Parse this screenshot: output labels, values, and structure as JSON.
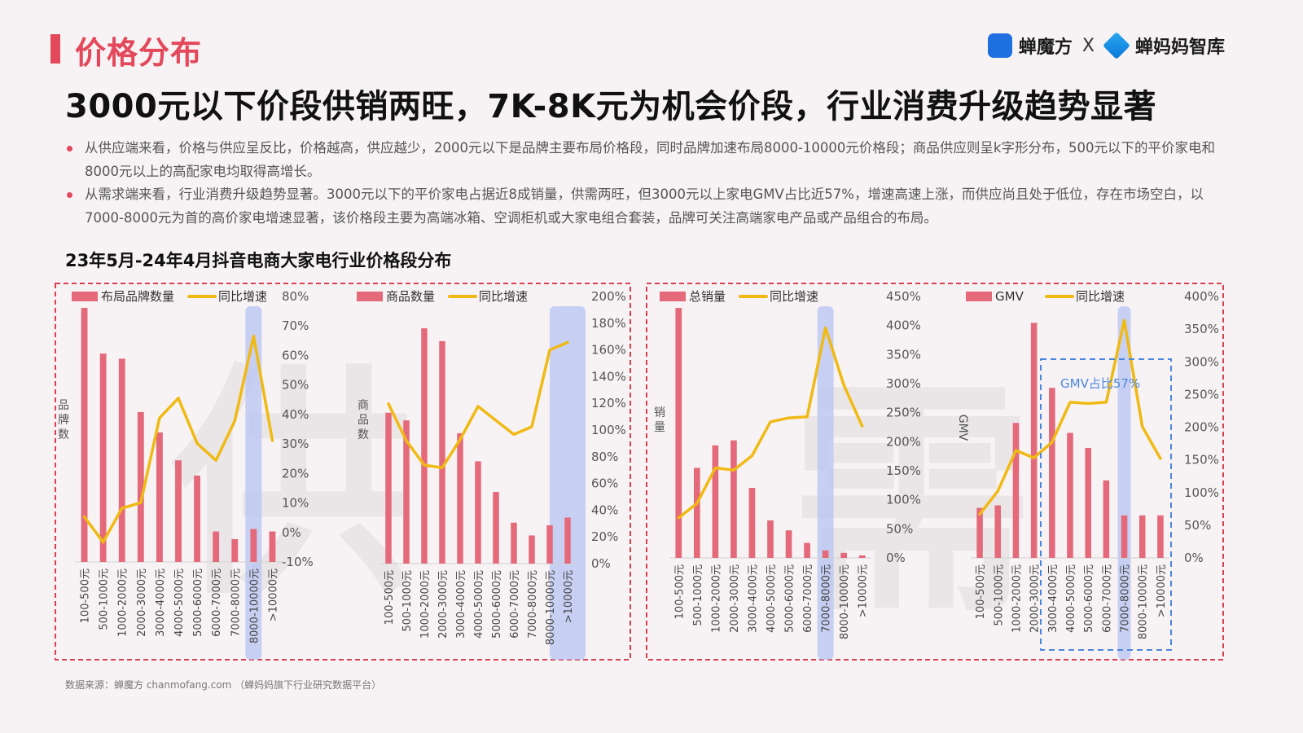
{
  "header": {
    "section_title": "价格分布",
    "logo_left": "蝉魔方",
    "logo_sep": "X",
    "logo_right": "蝉妈妈智库"
  },
  "headline": "3000元以下价段供销两旺，7K-8K元为机会价段，行业消费升级趋势显著",
  "bullets": [
    "从供应端来看，价格与供应呈反比，价格越高，供应越少，2000元以下是品牌主要布局价格段，同时品牌加速布局8000-10000元价格段；商品供应则呈k字形分布，500元以下的平价家电和8000元以上的高配家电均取得高增长。",
    "从需求端来看，行业消费升级趋势显著。3000元以下的平价家电占据近8成销量，供需两旺，但3000元以上家电GMV占比近57%，增速高速上涨，而供应尚且处于低位，存在市场空白，以7000-8000元为首的高价家电增速显著，该价格段主要为高端冰箱、空调柜机或大家电组合套装，品牌可关注高端家电产品或产品组合的布局。"
  ],
  "chart_section_title": "23年5月-24年4月抖音电商大家电行业价格段分布",
  "source_note": "数据来源：蝉魔方 chanmofang.com （蝉妈妈旗下行业研究数据平台）",
  "watermarks": {
    "supply": "供",
    "demand": "需"
  },
  "colors": {
    "bar": "#e4697a",
    "line": "#f0b914",
    "highlight": "#b7c4f2",
    "border_dashed": "#d93f50",
    "callout": "#4a86e0",
    "axis_text": "#555555"
  },
  "chart_data": [
    {
      "type": "bar",
      "title": "",
      "categories": [
        "100-500元",
        "500-1000元",
        "1000-2000元",
        "2000-3000元",
        "3000-4000元",
        "4000-5000元",
        "5000-6000元",
        "6000-7000元",
        "7000-8000元",
        "8000-10000元",
        ">10000元"
      ],
      "ylabel": "品牌数",
      "series": [
        {
          "name": "布局品牌数量",
          "type": "bar",
          "values": [
            100,
            82,
            80,
            59,
            51,
            40,
            34,
            12,
            9,
            13,
            12
          ]
        },
        {
          "name": "同比增速",
          "type": "line",
          "axis": "right",
          "values": [
            0.06,
            -0.03,
            0.09,
            0.11,
            0.41,
            0.48,
            0.32,
            0.26,
            0.4,
            0.7,
            0.33
          ]
        }
      ],
      "ylim": [
        0,
        100
      ],
      "y2lim": [
        -0.1,
        0.8
      ],
      "y2ticks": [
        "80%",
        "70%",
        "60%",
        "50%",
        "40%",
        "30%",
        "20%",
        "10%",
        "0%",
        "-10%"
      ],
      "highlight_category": "8000-10000元"
    },
    {
      "type": "bar",
      "title": "",
      "categories": [
        "100-500元",
        "500-1000元",
        "1000-2000元",
        "2000-3000元",
        "3000-4000元",
        "4000-5000元",
        "5000-6000元",
        "6000-7000元",
        "7000-8000元",
        "8000-10000元",
        ">10000元"
      ],
      "ylabel": "商品数",
      "series": [
        {
          "name": "商品数量",
          "type": "bar",
          "values": [
            59,
            56,
            92,
            87,
            51,
            40,
            28,
            16,
            11,
            15,
            18
          ]
        },
        {
          "name": "同比增速",
          "type": "line",
          "axis": "right",
          "values": [
            1.25,
            0.96,
            0.77,
            0.75,
            0.97,
            1.23,
            1.12,
            1.01,
            1.07,
            1.67,
            1.73
          ]
        }
      ],
      "ylim": [
        0,
        100
      ],
      "y2lim": [
        0,
        2.0
      ],
      "y2ticks": [
        "200%",
        "180%",
        "160%",
        "140%",
        "120%",
        "100%",
        "80%",
        "60%",
        "40%",
        "20%",
        "0%"
      ],
      "highlight_category": ">10000元"
    },
    {
      "type": "bar",
      "title": "",
      "categories": [
        "100-500元",
        "500-1000元",
        "1000-2000元",
        "2000-3000元",
        "3000-4000元",
        "4000-5000元",
        "5000-6000元",
        "6000-7000元",
        "7000-8000元",
        "8000-10000元",
        ">10000元"
      ],
      "ylabel": "销量",
      "series": [
        {
          "name": "总销量",
          "type": "bar",
          "values": [
            100,
            36,
            45,
            47,
            28,
            15,
            11,
            6,
            3,
            2,
            1
          ]
        },
        {
          "name": "同比增速",
          "type": "line",
          "axis": "right",
          "values": [
            0.72,
            0.98,
            1.62,
            1.58,
            1.84,
            2.45,
            2.52,
            2.54,
            4.14,
            3.11,
            2.37
          ]
        }
      ],
      "ylim": [
        0,
        100
      ],
      "y2lim": [
        0,
        4.5
      ],
      "y2ticks": [
        "450%",
        "400%",
        "350%",
        "300%",
        "250%",
        "200%",
        "150%",
        "100%",
        "50%",
        "0%"
      ],
      "highlight_category": "7000-8000元"
    },
    {
      "type": "bar",
      "title": "",
      "categories": [
        "100-500元",
        "500-1000元",
        "1000-2000元",
        "2000-3000元",
        "3000-4000元",
        "4000-5000元",
        "5000-6000元",
        "6000-7000元",
        "7000-8000元",
        "8000-10000元",
        ">10000元"
      ],
      "ylabel": "GMV",
      "series": [
        {
          "name": "GMV",
          "type": "bar",
          "values": [
            20,
            21,
            54,
            94,
            68,
            50,
            44,
            31,
            17,
            17,
            17
          ]
        },
        {
          "name": "同比增速",
          "type": "line",
          "axis": "right",
          "values": [
            0.7,
            1.07,
            1.72,
            1.6,
            1.85,
            2.49,
            2.47,
            2.49,
            3.8,
            2.1,
            1.59
          ]
        }
      ],
      "ylim": [
        0,
        100
      ],
      "y2lim": [
        0,
        4.0
      ],
      "y2ticks": [
        "400%",
        "350%",
        "300%",
        "250%",
        "200%",
        "150%",
        "100%",
        "50%",
        "0%"
      ],
      "highlight_category": "7000-8000元",
      "annotation": "GMV占比57%"
    }
  ]
}
